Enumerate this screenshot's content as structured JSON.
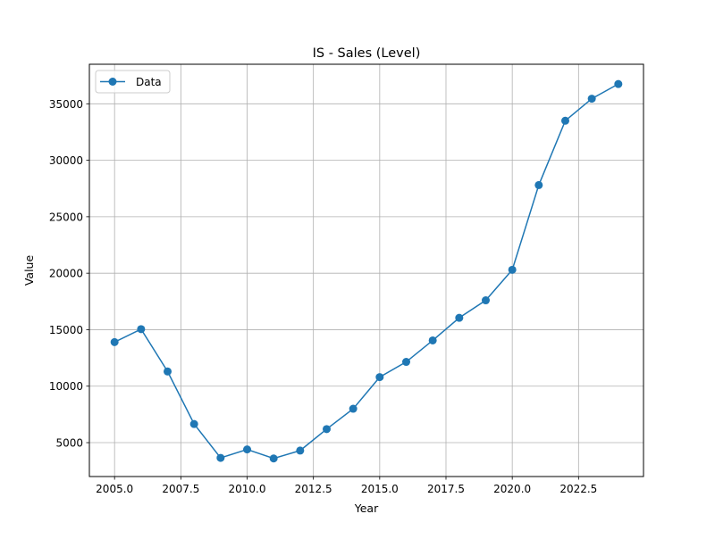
{
  "chart_data": {
    "type": "line",
    "title": "IS - Sales (Level)",
    "xlabel": "Year",
    "ylabel": "Value",
    "xlim": [
      2004.05,
      2024.95
    ],
    "ylim": [
      2000,
      38500
    ],
    "xticks": [
      2005.0,
      2007.5,
      2010.0,
      2012.5,
      2015.0,
      2017.5,
      2020.0,
      2022.5
    ],
    "xtick_labels": [
      "2005.0",
      "2007.5",
      "2010.0",
      "2012.5",
      "2015.0",
      "2017.5",
      "2020.0",
      "2022.5"
    ],
    "yticks": [
      5000,
      10000,
      15000,
      20000,
      25000,
      30000,
      35000
    ],
    "ytick_labels": [
      "5000",
      "10000",
      "15000",
      "20000",
      "25000",
      "30000",
      "35000"
    ],
    "grid": true,
    "legend": {
      "placement": "top-left",
      "entries": [
        "Data"
      ]
    },
    "series": [
      {
        "name": "Data",
        "color": "#1f77b4",
        "marker": "circle",
        "x": [
          2005,
          2006,
          2007,
          2008,
          2009,
          2010,
          2011,
          2012,
          2013,
          2014,
          2015,
          2016,
          2017,
          2018,
          2019,
          2020,
          2021,
          2022,
          2023,
          2024
        ],
        "values": [
          13900,
          15050,
          11300,
          6650,
          3650,
          4400,
          3600,
          4300,
          6200,
          8000,
          10800,
          12150,
          14050,
          16050,
          17600,
          20300,
          27800,
          33500,
          35450,
          36750
        ]
      }
    ]
  }
}
